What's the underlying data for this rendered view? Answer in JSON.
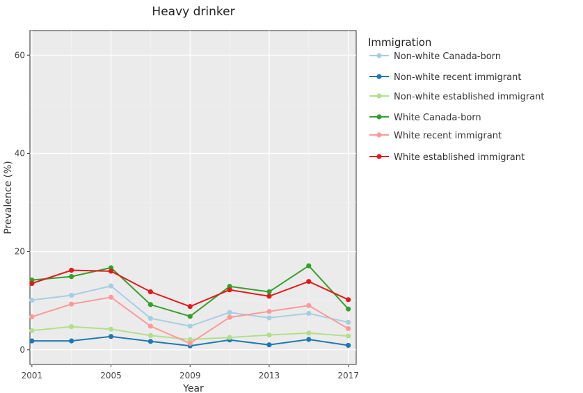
{
  "chart_data": {
    "type": "line",
    "title": "Heavy drinker",
    "xlabel": "Year",
    "ylabel": "Prevalence (%)",
    "xlim": [
      2000.9,
      2017.4
    ],
    "ylim": [
      -3,
      65
    ],
    "xticks": [
      2001,
      2005,
      2009,
      2013,
      2017
    ],
    "yticks": [
      0,
      20,
      40,
      60
    ],
    "grid": true,
    "legend": {
      "title": "Immigration",
      "position": "right"
    },
    "x": [
      2001,
      2003,
      2005,
      2007,
      2009,
      2011,
      2013,
      2015,
      2017
    ],
    "series": [
      {
        "name": "Non-white Canada-born",
        "color": "#a6cee3",
        "values": [
          10.1,
          11.1,
          13.0,
          6.4,
          4.8,
          7.6,
          6.5,
          7.4,
          5.6
        ]
      },
      {
        "name": "Non-white recent immigrant",
        "color": "#1f78b4",
        "values": [
          1.8,
          1.8,
          2.7,
          1.7,
          0.8,
          2.0,
          1.0,
          2.1,
          0.9
        ]
      },
      {
        "name": "Non-white established immigrant",
        "color": "#b2df8a",
        "values": [
          3.9,
          4.7,
          4.2,
          2.9,
          2.1,
          2.5,
          3.0,
          3.4,
          2.8
        ]
      },
      {
        "name": "White Canada-born",
        "color": "#33a02c",
        "values": [
          14.2,
          14.9,
          16.7,
          9.2,
          6.8,
          12.9,
          11.8,
          17.1,
          8.3
        ]
      },
      {
        "name": "White recent immigrant",
        "color": "#fb9a99",
        "values": [
          6.7,
          9.3,
          10.7,
          4.8,
          1.3,
          6.6,
          7.8,
          9.0,
          4.3
        ]
      },
      {
        "name": "White established immigrant",
        "color": "#e31a1c",
        "values": [
          13.5,
          16.2,
          16.0,
          11.8,
          8.8,
          12.2,
          10.9,
          13.9,
          10.2
        ]
      }
    ]
  }
}
